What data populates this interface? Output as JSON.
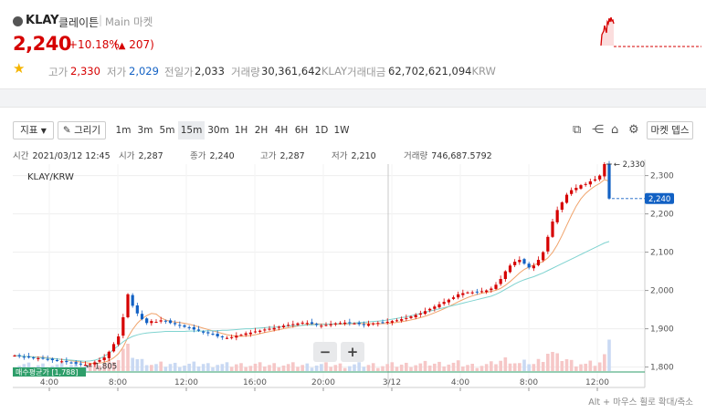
{
  "coin": {
    "symbol": "KLAY",
    "name_kr": "클레이튼",
    "market": "Main 마켓",
    "price": "2,240",
    "change_pct": "+10.18%",
    "change_abs": "207",
    "change_arrow": "▲"
  },
  "stats": [
    {
      "label": "고가",
      "value": "2,330",
      "tone": "up"
    },
    {
      "label": "저가",
      "value": "2,029",
      "tone": "down"
    },
    {
      "label": "전일가",
      "value": "2,033",
      "tone": ""
    },
    {
      "label": "거래량",
      "value": "30,361,642",
      "unit": "KLAY",
      "tone": ""
    },
    {
      "label": "거래대금",
      "value": "62,702,621,094",
      "unit": "KRW",
      "tone": ""
    }
  ],
  "toolbar": {
    "indicator_label": "지표",
    "draw_label": "그리기",
    "timeframes": [
      "1m",
      "3m",
      "5m",
      "15m",
      "30m",
      "1H",
      "2H",
      "4H",
      "6H",
      "1D",
      "1W"
    ],
    "active_timeframe": "15m",
    "market_depth_label": "마켓 뎁스"
  },
  "ohlc": {
    "time_label": "시간",
    "time_value": "2021/03/12 12:45",
    "open_label": "시가",
    "open_value": "2,287",
    "close_label": "종가",
    "close_value": "2,240",
    "high_label": "고가",
    "high_value": "2,287",
    "low_label": "저가",
    "low_value": "2,210",
    "volume_label": "거래량",
    "volume_value": "746,687.5792"
  },
  "chart_data": {
    "type": "candlestick",
    "title": "KLAY/KRW",
    "x_ticks": [
      "4:00",
      "8:00",
      "12:00",
      "16:00",
      "20:00",
      "3/12",
      "4:00",
      "8:00",
      "12:00"
    ],
    "y_ticks": [
      1800,
      1900,
      2000,
      2100,
      2200,
      2300
    ],
    "ylim": [
      1780,
      2330
    ],
    "current_price": "2,240",
    "max_label": "2,330",
    "min_label": "1,805",
    "avg_buy_label": "매수평균가 [1,788]",
    "price_path": [
      1830,
      1828,
      1826,
      1825,
      1824,
      1823,
      1822,
      1820,
      1818,
      1817,
      1815,
      1813,
      1811,
      1809,
      1808,
      1806,
      1808,
      1812,
      1818,
      1825,
      1840,
      1860,
      1880,
      1930,
      1990,
      1960,
      1940,
      1925,
      1915,
      1920,
      1918,
      1922,
      1920,
      1915,
      1912,
      1908,
      1905,
      1902,
      1898,
      1895,
      1890,
      1888,
      1885,
      1880,
      1878,
      1876,
      1878,
      1882,
      1884,
      1888,
      1890,
      1893,
      1895,
      1898,
      1900,
      1902,
      1905,
      1908,
      1910,
      1912,
      1914,
      1916,
      1915,
      1913,
      1910,
      1908,
      1910,
      1912,
      1914,
      1915,
      1916,
      1915,
      1914,
      1912,
      1910,
      1912,
      1914,
      1915,
      1916,
      1918,
      1920,
      1922,
      1925,
      1928,
      1932,
      1936,
      1940,
      1946,
      1952,
      1958,
      1964,
      1970,
      1976,
      1982,
      1990,
      1993,
      1995,
      1995,
      1996,
      1998,
      2000,
      2005,
      2015,
      2030,
      2050,
      2065,
      2075,
      2080,
      2070,
      2060,
      2065,
      2080,
      2100,
      2140,
      2180,
      2210,
      2230,
      2250,
      2262,
      2268,
      2275,
      2278,
      2285,
      2290,
      2300,
      2330,
      2240
    ],
    "ma_slow_path": [
      1830,
      1829,
      1828,
      1827,
      1826,
      1825,
      1824,
      1823,
      1822,
      1821,
      1820,
      1819,
      1818,
      1817,
      1816,
      1815,
      1816,
      1818,
      1822,
      1828,
      1836,
      1846,
      1856,
      1866,
      1874,
      1880,
      1884,
      1887,
      1889,
      1890,
      1891,
      1892,
      1893,
      1893,
      1893,
      1893,
      1893,
      1894,
      1894,
      1894,
      1894,
      1895,
      1895,
      1895,
      1896,
      1896,
      1897,
      1898,
      1899,
      1900,
      1900,
      1901,
      1902,
      1903,
      1904,
      1904,
      1905,
      1906,
      1907,
      1908,
      1908,
      1909,
      1910,
      1910,
      1911,
      1911,
      1912,
      1912,
      1913,
      1913,
      1914,
      1914,
      1915,
      1916,
      1917,
      1918,
      1919,
      1920,
      1921,
      1923,
      1925,
      1927,
      1929,
      1931,
      1934,
      1937,
      1940,
      1943,
      1946,
      1949,
      1952,
      1955,
      1958,
      1961,
      1964,
      1967,
      1970,
      1973,
      1976,
      1979,
      1982,
      1985,
      1990,
      1996,
      2003,
      2010,
      2017,
      2023,
      2028,
      2032,
      2036,
      2041,
      2046,
      2052,
      2058,
      2064,
      2070,
      2076,
      2082,
      2088,
      2094,
      2100,
      2106,
      2112,
      2118,
      2124,
      2128
    ]
  },
  "hint_text": "Alt + 마우스 휠로 확대/축소"
}
